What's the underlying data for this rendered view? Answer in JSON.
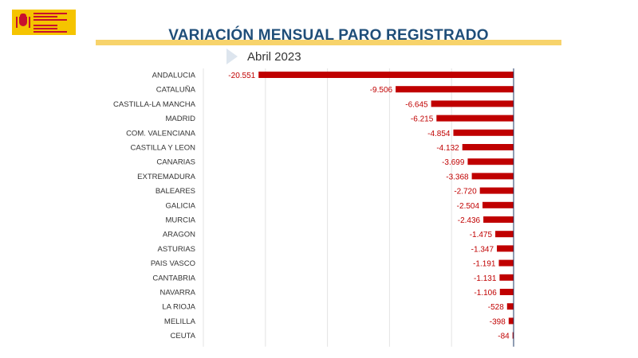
{
  "header": {
    "title": "VARIACIÓN MENSUAL PARO REGISTRADO",
    "subtitle": "Abril 2023"
  },
  "colors": {
    "bar": "#c00000",
    "title": "#1f4e79",
    "accent": "#f5c400",
    "grid": "#e3e3e3",
    "axis": "#1f3864"
  },
  "chart_data": {
    "type": "bar",
    "orientation": "horizontal",
    "title": "VARIACIÓN MENSUAL PARO REGISTRADO",
    "subtitle": "Abril 2023",
    "categories": [
      "ANDALUCIA",
      "CATALUÑA",
      "CASTILLA-LA MANCHA",
      "MADRID",
      "COM. VALENCIANA",
      "CASTILLA Y LEON",
      "CANARIAS",
      "EXTREMADURA",
      "BALEARES",
      "GALICIA",
      "MURCIA",
      "ARAGON",
      "ASTURIAS",
      "PAIS VASCO",
      "CANTABRIA",
      "NAVARRA",
      "LA RIOJA",
      "MELILLA",
      "CEUTA"
    ],
    "values": [
      -20551,
      -9506,
      -6645,
      -6215,
      -4854,
      -4132,
      -3699,
      -3368,
      -2720,
      -2504,
      -2436,
      -1475,
      -1347,
      -1191,
      -1131,
      -1106,
      -528,
      -398,
      -84
    ],
    "value_labels": [
      "-20.551",
      "-9.506",
      "-6.645",
      "-6.215",
      "-4.854",
      "-4.132",
      "-3.699",
      "-3.368",
      "-2.720",
      "-2.504",
      "-2.436",
      "-1.475",
      "-1.347",
      "-1.191",
      "-1.131",
      "-1.106",
      "-528",
      "-398",
      "-84"
    ],
    "xlim": [
      -25000,
      0
    ],
    "grid": true,
    "legend": "none"
  }
}
